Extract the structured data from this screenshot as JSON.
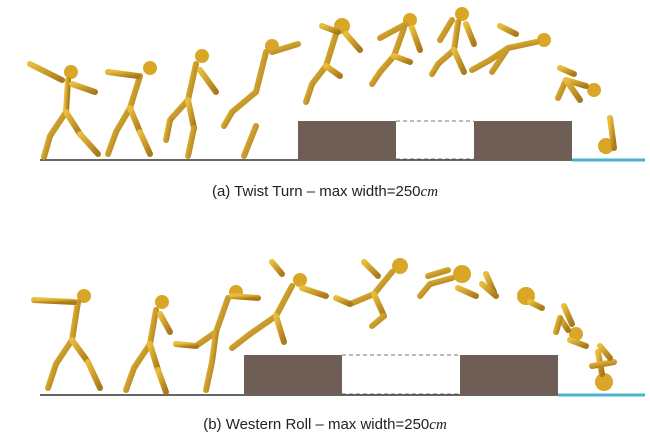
{
  "figure": {
    "panels": [
      {
        "id": "a",
        "caption_prefix": "(a) Twist Turn – max width=",
        "caption_value": "250",
        "caption_unit": "cm",
        "box_color": "#6f5e55",
        "landing_color": "#4ab3cf",
        "figure_color": "#d9a628"
      },
      {
        "id": "b",
        "caption_prefix": "(b) Western Roll – max width=",
        "caption_value": "250",
        "caption_unit": "cm",
        "box_color": "#6f5e55",
        "landing_color": "#4ab3cf",
        "figure_color": "#d9a628"
      }
    ]
  }
}
